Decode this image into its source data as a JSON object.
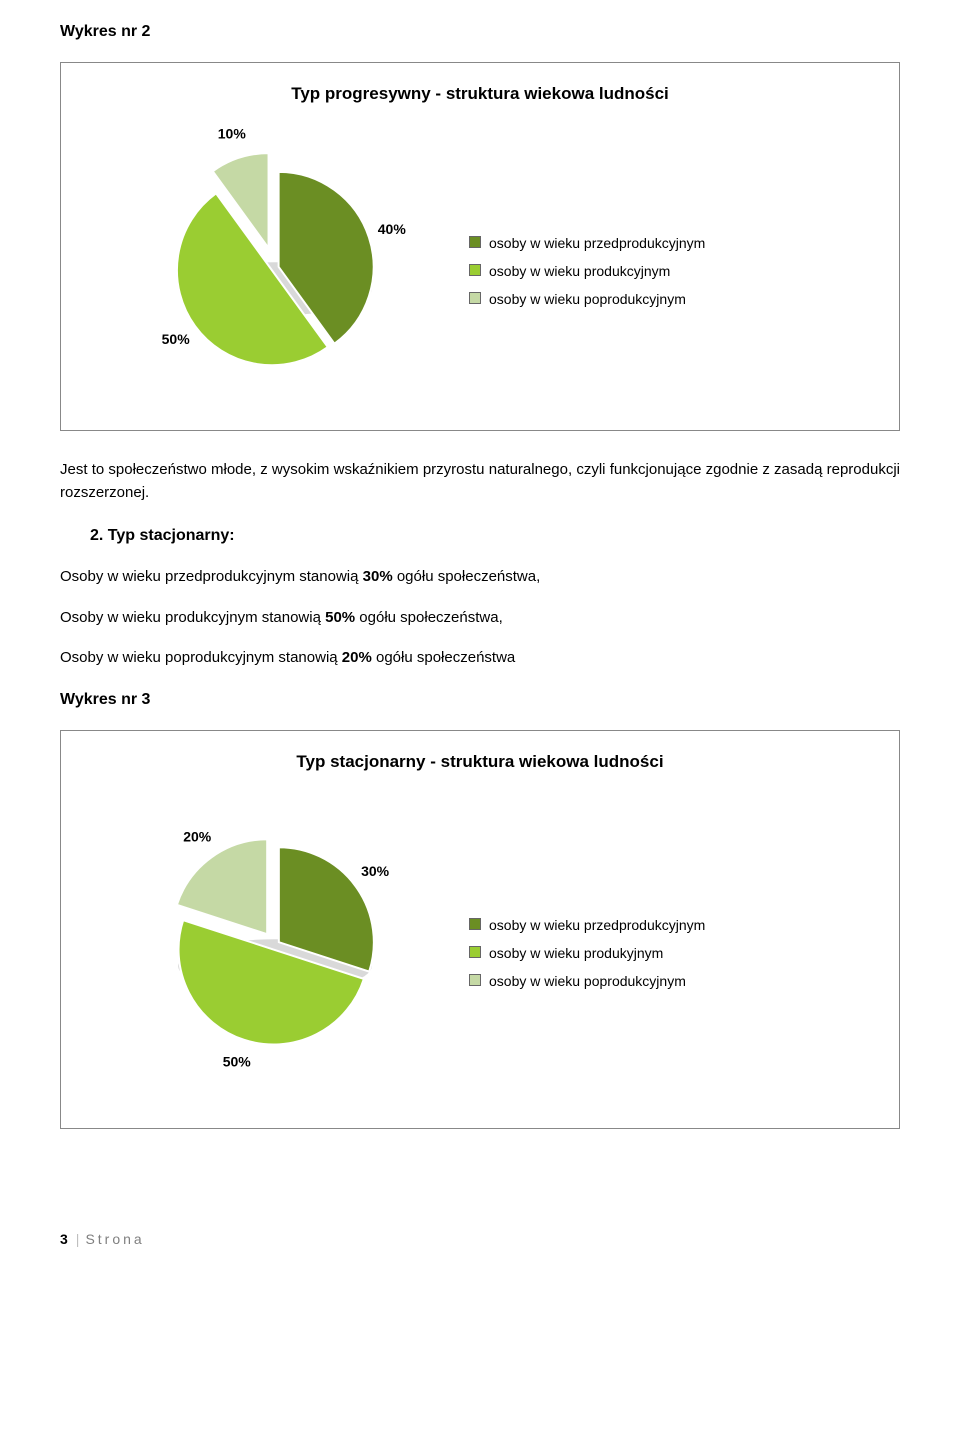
{
  "header1": "Wykres nr 2",
  "chart1": {
    "type": "pie",
    "title": "Typ progresywny - struktura wiekowa ludności",
    "slices": [
      {
        "label": "osoby w wieku przedprodukcyjnym",
        "value": 40,
        "pct_label": "40%",
        "fill": "#6b8e23",
        "explode": 0.04
      },
      {
        "label": "osoby w wieku produkcyjnym",
        "value": 50,
        "pct_label": "50%",
        "fill": "#9acd32",
        "explode": 0.04
      },
      {
        "label": "osoby w wieku poprodukcyjnym",
        "value": 10,
        "pct_label": "10%",
        "fill": "#c5d9a5",
        "explode": 0.22
      }
    ],
    "legend_swatches": [
      {
        "text": "osoby w wieku przedprodukcyjnym",
        "color": "#6b8e23"
      },
      {
        "text": "osoby w wieku produkcyjnym",
        "color": "#9acd32"
      },
      {
        "text": "osoby w wieku poprodukcyjnym",
        "color": "#c5d9a5"
      }
    ],
    "label_color": "#000000",
    "label_fontsize": 14,
    "slice_border": "#ffffff",
    "shadow_color": "#d9d9d9"
  },
  "para1": "Jest to społeczeństwo młode, z wysokim wskaźnikiem przyrostu naturalnego, czyli funkcjonujące zgodnie z zasadą reprodukcji rozszerzonej.",
  "subheading": "2. Typ stacjonarny:",
  "body_lines": {
    "l1_pre": "Osoby w wieku przedprodukcyjnym stanowią ",
    "l1_b": "30%",
    "l1_post": " ogółu społeczeństwa,",
    "l2_pre": "Osoby w wieku produkcyjnym stanowią ",
    "l2_b": "50%",
    "l2_post": " ogółu społeczeństwa,",
    "l3_pre": "Osoby w wieku poprodukcyjnym stanowią ",
    "l3_b": "20%",
    "l3_post": " ogółu społeczeństwa"
  },
  "header2": "Wykres nr 3",
  "chart2": {
    "type": "pie",
    "title": "Typ stacjonarny - struktura wiekowa ludności",
    "slices": [
      {
        "label": "osoby w wieku przedprodukcyjnym",
        "value": 30,
        "pct_label": "30%",
        "fill": "#6b8e23",
        "explode": 0.05
      },
      {
        "label": "osoby w wieku produkyjnym",
        "value": 50,
        "pct_label": "50%",
        "fill": "#9acd32",
        "explode": 0.05
      },
      {
        "label": "osoby w wieku poprodukcyjnym",
        "value": 20,
        "pct_label": "20%",
        "fill": "#c5d9a5",
        "explode": 0.14
      }
    ],
    "legend_swatches": [
      {
        "text": "osoby w wieku przedprodukcyjnym",
        "color": "#6b8e23"
      },
      {
        "text": "osoby w wieku produkyjnym",
        "color": "#9acd32"
      },
      {
        "text": "osoby w wieku poprodukcyjnym",
        "color": "#c5d9a5"
      }
    ],
    "label_color": "#000000",
    "label_fontsize": 14,
    "slice_border": "#ffffff",
    "shadow_color": "#d9d9d9"
  },
  "footer": {
    "pageno": "3",
    "strona": "Strona"
  }
}
